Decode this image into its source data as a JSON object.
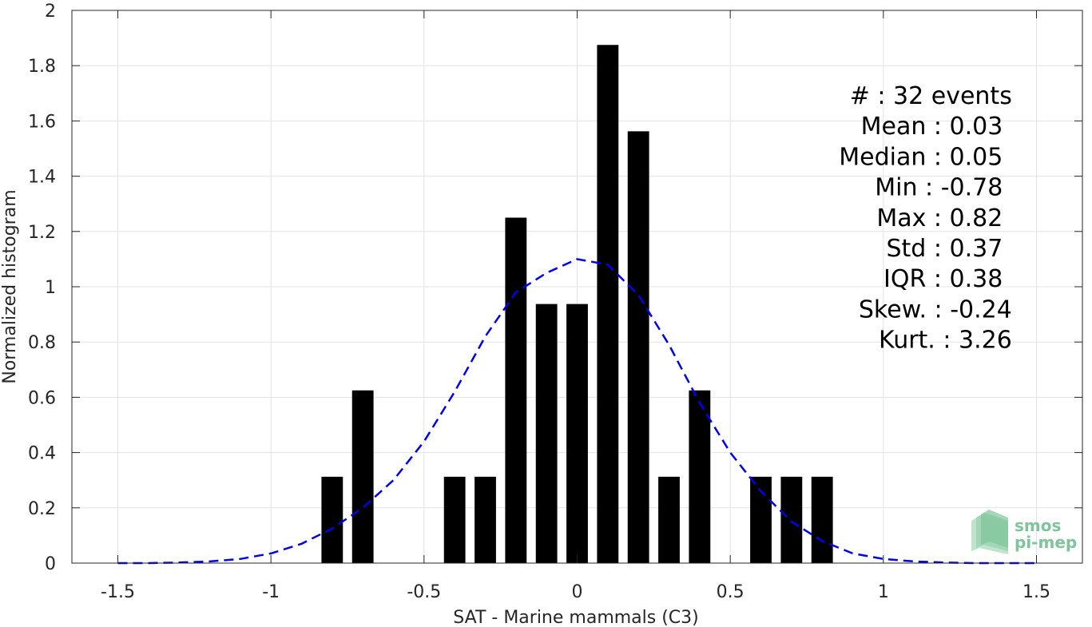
{
  "chart_data": {
    "type": "bar",
    "xlabel": "SAT - Marine mammals (C3)",
    "ylabel": "Normalized histogram",
    "xlim": [
      -1.65,
      1.65
    ],
    "ylim": [
      0,
      2
    ],
    "grid": true,
    "bar_width": 0.07,
    "x_ticks": [
      -1.5,
      -1,
      -0.5,
      0,
      0.5,
      1,
      1.5
    ],
    "x_tick_labels": [
      "-1.5",
      "-1",
      "-0.5",
      "0",
      "0.5",
      "1",
      "1.5"
    ],
    "y_ticks": [
      0,
      0.2,
      0.4,
      0.6,
      0.8,
      1,
      1.2,
      1.4,
      1.6,
      1.8,
      2
    ],
    "y_tick_labels": [
      "0",
      "0.2",
      "0.4",
      "0.6",
      "0.8",
      "1",
      "1.2",
      "1.4",
      "1.6",
      "1.8",
      "2"
    ],
    "series": [
      {
        "type": "bar",
        "color": "#000000",
        "x": [
          -0.8,
          -0.7,
          -0.4,
          -0.3,
          -0.2,
          -0.1,
          0.0,
          0.1,
          0.2,
          0.3,
          0.4,
          0.6,
          0.7,
          0.8
        ],
        "values": [
          0.3125,
          0.625,
          0.3125,
          0.3125,
          1.25,
          0.9375,
          0.9375,
          1.875,
          1.5625,
          0.3125,
          0.625,
          0.3125,
          0.3125,
          0.3125
        ]
      },
      {
        "type": "line",
        "style": "dashed",
        "color": "#0000ee",
        "x": [
          -1.5,
          -1.4,
          -1.3,
          -1.2,
          -1.1,
          -1.0,
          -0.9,
          -0.8,
          -0.7,
          -0.6,
          -0.5,
          -0.4,
          -0.3,
          -0.2,
          -0.1,
          0.0,
          0.1,
          0.2,
          0.3,
          0.4,
          0.5,
          0.6,
          0.7,
          0.8,
          0.9,
          1.0,
          1.1,
          1.2,
          1.3,
          1.4,
          1.5
        ],
        "values": [
          0.0,
          0.0,
          0.002,
          0.006,
          0.015,
          0.035,
          0.07,
          0.125,
          0.2,
          0.3,
          0.44,
          0.62,
          0.82,
          0.98,
          1.05,
          1.1,
          1.08,
          0.97,
          0.79,
          0.58,
          0.4,
          0.26,
          0.15,
          0.08,
          0.035,
          0.015,
          0.006,
          0.002,
          0.0,
          0.0,
          0.0
        ]
      }
    ],
    "stats": [
      {
        "label": "#  : 32 events",
        "anchor": "end",
        "x": 1.42
      },
      {
        "label": "Mean : 0.03",
        "anchor": "end",
        "x": 1.39
      },
      {
        "label": "Median : 0.05",
        "anchor": "end",
        "x": 1.39
      },
      {
        "label": "Min : -0.78",
        "anchor": "end",
        "x": 1.39
      },
      {
        "label": "Max : 0.82",
        "anchor": "end",
        "x": 1.39
      },
      {
        "label": "Std : 0.37",
        "anchor": "end",
        "x": 1.39
      },
      {
        "label": "IQR : 0.38",
        "anchor": "end",
        "x": 1.39
      },
      {
        "label": "Skew. : -0.24",
        "anchor": "end",
        "x": 1.42
      },
      {
        "label": "Kurt. : 3.26",
        "anchor": "end",
        "x": 1.42
      }
    ]
  },
  "logo": {
    "line1": "smos",
    "line2": "pi-mep",
    "color": "#7fc49a"
  }
}
